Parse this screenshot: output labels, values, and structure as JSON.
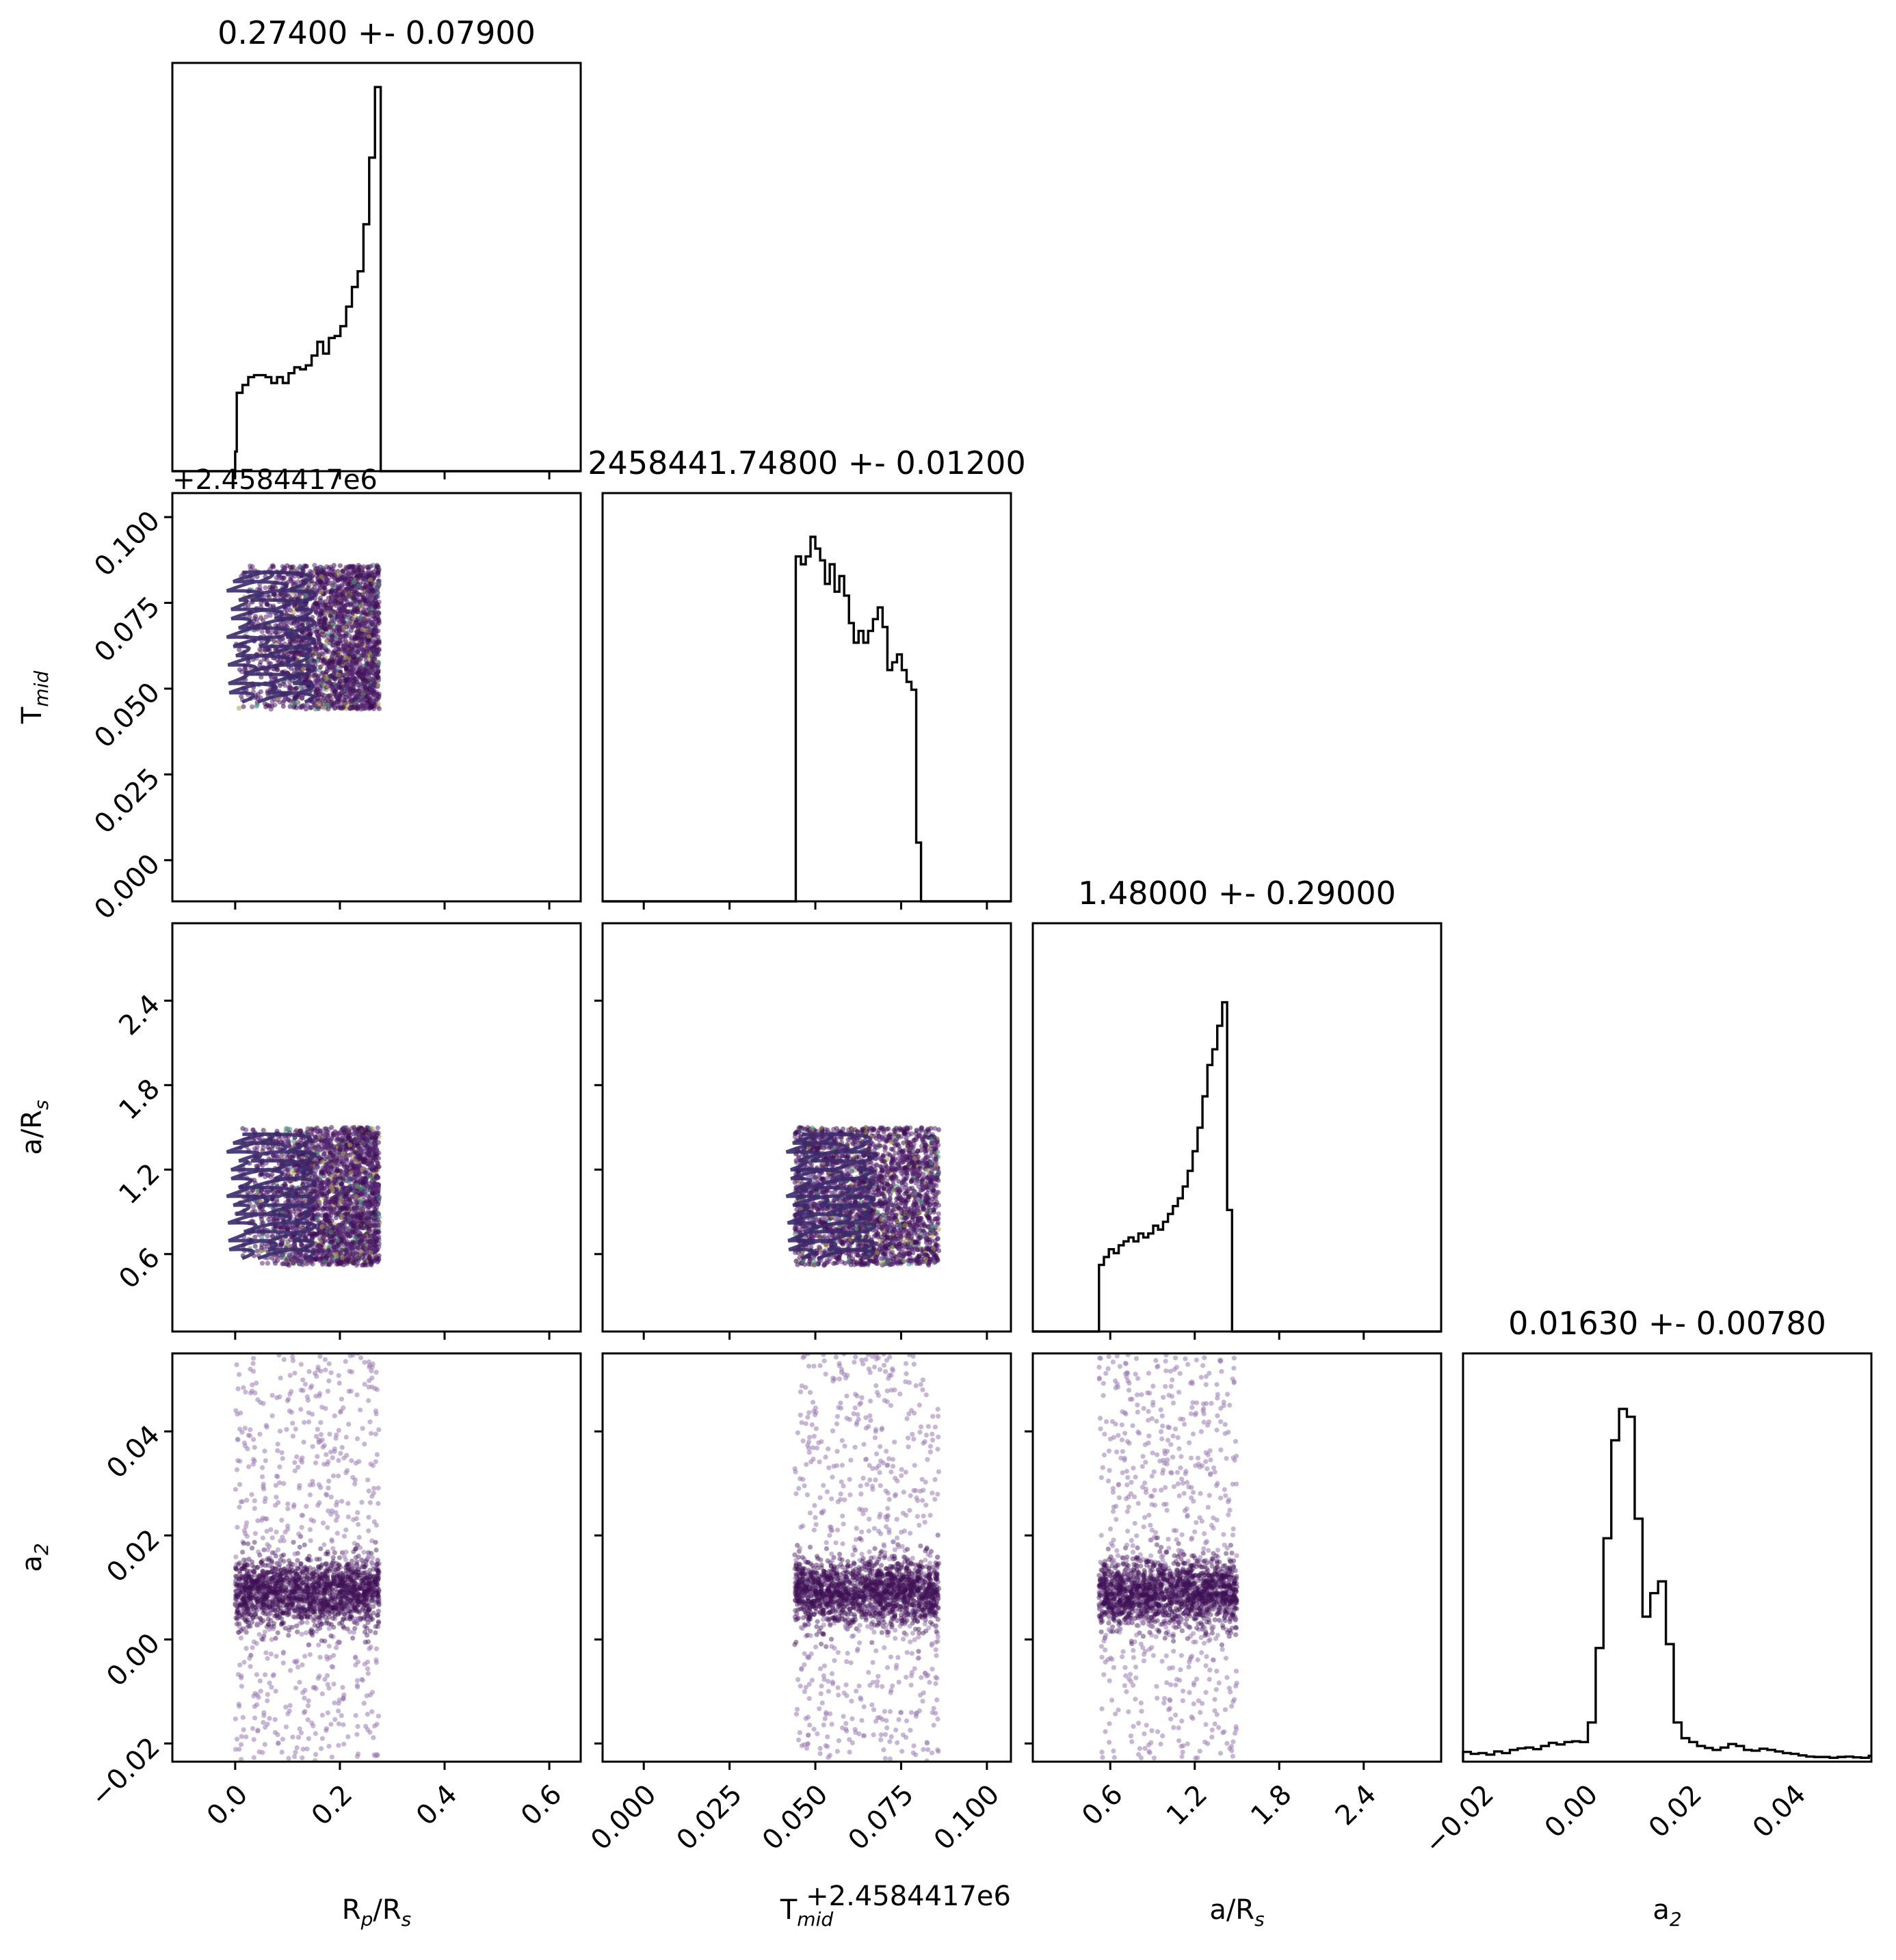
{
  "figure": {
    "type": "corner",
    "theme_colors": {
      "points_dark": "#3e0f55",
      "points_mid": "#5b2a7a",
      "points_light": "#9a7ab2",
      "contour": "#3b2a6b",
      "line": "#000000"
    }
  },
  "chart_data": {
    "type": "corner",
    "parameters": [
      {
        "id": "rp",
        "label": "R",
        "label_sub": "p",
        "label_tail": "/R",
        "label_tail_sub": "s",
        "title": "0.27400 +- 0.07900",
        "range": [
          -0.12,
          0.66
        ],
        "ticks": [
          0.0,
          0.2,
          0.4,
          0.6
        ],
        "tick_labels": [
          "0.0",
          "0.2",
          "0.4",
          "0.6"
        ],
        "sample_range": [
          0.0,
          0.275
        ],
        "offset_text": ""
      },
      {
        "id": "tmid",
        "label": "T",
        "label_sub": "mid",
        "label_tail": "",
        "label_tail_sub": "",
        "title": "2458441.74800 +- 0.01200",
        "range": [
          -0.012,
          0.107
        ],
        "ticks": [
          0.0,
          0.025,
          0.05,
          0.075,
          0.1
        ],
        "tick_labels": [
          "0.000",
          "0.025",
          "0.050",
          "0.075",
          "0.100"
        ],
        "sample_range": [
          0.044,
          0.086
        ],
        "offset_text": "+2.4584417e6"
      },
      {
        "id": "ars",
        "label": "a/R",
        "label_sub": "s",
        "label_tail": "",
        "label_tail_sub": "",
        "title": "1.48000 +- 0.29000",
        "range": [
          0.05,
          2.95
        ],
        "ticks": [
          0.6,
          1.2,
          1.8,
          2.4
        ],
        "tick_labels": [
          "0.6",
          "1.2",
          "1.8",
          "2.4"
        ],
        "sample_range": [
          0.52,
          1.5
        ],
        "offset_text": ""
      },
      {
        "id": "a2",
        "label": "a",
        "label_sub": "2",
        "label_tail": "",
        "label_tail_sub": "",
        "title": "0.01630 +- 0.00780",
        "range": [
          -0.0235,
          0.055
        ],
        "ticks": [
          -0.02,
          0.0,
          0.02,
          0.04
        ],
        "tick_labels": [
          "−0.02",
          "0.00",
          "0.02",
          "0.04"
        ],
        "sample_range": [
          -0.0235,
          0.055
        ],
        "offset_text": ""
      }
    ],
    "histograms": {
      "rp": [
        [
          -0.01,
          0.0
        ],
        [
          0.0,
          0.05
        ],
        [
          0.003,
          0.2
        ],
        [
          0.014,
          0.22
        ],
        [
          0.025,
          0.24
        ],
        [
          0.036,
          0.245
        ],
        [
          0.047,
          0.245
        ],
        [
          0.058,
          0.24
        ],
        [
          0.069,
          0.225
        ],
        [
          0.08,
          0.24
        ],
        [
          0.091,
          0.225
        ],
        [
          0.102,
          0.25
        ],
        [
          0.113,
          0.265
        ],
        [
          0.124,
          0.26
        ],
        [
          0.135,
          0.27
        ],
        [
          0.146,
          0.295
        ],
        [
          0.157,
          0.33
        ],
        [
          0.168,
          0.3
        ],
        [
          0.179,
          0.34
        ],
        [
          0.19,
          0.345
        ],
        [
          0.201,
          0.37
        ],
        [
          0.212,
          0.42
        ],
        [
          0.223,
          0.47
        ],
        [
          0.234,
          0.51
        ],
        [
          0.245,
          0.63
        ],
        [
          0.256,
          0.8
        ],
        [
          0.267,
          0.98
        ],
        [
          0.278,
          0.0
        ]
      ],
      "tmid": [
        [
          0.0436,
          0.0
        ],
        [
          0.0443,
          0.88
        ],
        [
          0.0458,
          0.86
        ],
        [
          0.0472,
          0.88
        ],
        [
          0.0486,
          0.93
        ],
        [
          0.05,
          0.9
        ],
        [
          0.0514,
          0.87
        ],
        [
          0.0528,
          0.81
        ],
        [
          0.0542,
          0.86
        ],
        [
          0.0556,
          0.79
        ],
        [
          0.057,
          0.83
        ],
        [
          0.0584,
          0.78
        ],
        [
          0.0598,
          0.71
        ],
        [
          0.0612,
          0.66
        ],
        [
          0.0626,
          0.69
        ],
        [
          0.064,
          0.66
        ],
        [
          0.0654,
          0.69
        ],
        [
          0.0668,
          0.72
        ],
        [
          0.0682,
          0.75
        ],
        [
          0.0696,
          0.7
        ],
        [
          0.071,
          0.59
        ],
        [
          0.0724,
          0.61
        ],
        [
          0.0738,
          0.63
        ],
        [
          0.0752,
          0.59
        ],
        [
          0.0766,
          0.56
        ],
        [
          0.078,
          0.54
        ],
        [
          0.0794,
          0.15
        ],
        [
          0.0808,
          0.0
        ]
      ],
      "ars": [
        [
          0.5,
          0.0
        ],
        [
          0.52,
          0.17
        ],
        [
          0.555,
          0.19
        ],
        [
          0.59,
          0.21
        ],
        [
          0.625,
          0.2
        ],
        [
          0.66,
          0.22
        ],
        [
          0.695,
          0.23
        ],
        [
          0.73,
          0.24
        ],
        [
          0.765,
          0.23
        ],
        [
          0.8,
          0.25
        ],
        [
          0.835,
          0.24
        ],
        [
          0.87,
          0.25
        ],
        [
          0.905,
          0.27
        ],
        [
          0.94,
          0.26
        ],
        [
          0.975,
          0.28
        ],
        [
          1.01,
          0.3
        ],
        [
          1.045,
          0.32
        ],
        [
          1.08,
          0.34
        ],
        [
          1.115,
          0.37
        ],
        [
          1.15,
          0.41
        ],
        [
          1.185,
          0.46
        ],
        [
          1.22,
          0.52
        ],
        [
          1.255,
          0.6
        ],
        [
          1.29,
          0.68
        ],
        [
          1.325,
          0.72
        ],
        [
          1.36,
          0.78
        ],
        [
          1.395,
          0.84
        ],
        [
          1.43,
          0.31
        ],
        [
          1.465,
          0.0
        ]
      ],
      "a2": [
        [
          -0.0235,
          0.025
        ],
        [
          -0.022,
          0.02
        ],
        [
          -0.0205,
          0.022
        ],
        [
          -0.019,
          0.018
        ],
        [
          -0.0175,
          0.026
        ],
        [
          -0.016,
          0.022
        ],
        [
          -0.0145,
          0.03
        ],
        [
          -0.013,
          0.034
        ],
        [
          -0.0115,
          0.036
        ],
        [
          -0.01,
          0.032
        ],
        [
          -0.0085,
          0.04
        ],
        [
          -0.007,
          0.048
        ],
        [
          -0.0055,
          0.044
        ],
        [
          -0.004,
          0.05
        ],
        [
          -0.0025,
          0.052
        ],
        [
          -0.001,
          0.05
        ],
        [
          0.0005,
          0.1
        ],
        [
          0.002,
          0.29
        ],
        [
          0.0035,
          0.57
        ],
        [
          0.005,
          0.82
        ],
        [
          0.0065,
          0.9
        ],
        [
          0.008,
          0.88
        ],
        [
          0.0095,
          0.62
        ],
        [
          0.011,
          0.37
        ],
        [
          0.0125,
          0.43
        ],
        [
          0.014,
          0.46
        ],
        [
          0.0155,
          0.3
        ],
        [
          0.017,
          0.1
        ],
        [
          0.0185,
          0.06
        ],
        [
          0.02,
          0.05
        ],
        [
          0.0215,
          0.04
        ],
        [
          0.023,
          0.035
        ],
        [
          0.0245,
          0.03
        ],
        [
          0.026,
          0.036
        ],
        [
          0.0275,
          0.045
        ],
        [
          0.029,
          0.04
        ],
        [
          0.0305,
          0.03
        ],
        [
          0.032,
          0.028
        ],
        [
          0.0335,
          0.033
        ],
        [
          0.035,
          0.03
        ],
        [
          0.0365,
          0.026
        ],
        [
          0.038,
          0.022
        ],
        [
          0.0395,
          0.02
        ],
        [
          0.041,
          0.016
        ],
        [
          0.0425,
          0.013
        ],
        [
          0.044,
          0.012
        ],
        [
          0.0455,
          0.012
        ],
        [
          0.047,
          0.01
        ],
        [
          0.0485,
          0.012
        ],
        [
          0.05,
          0.013
        ],
        [
          0.0515,
          0.011
        ],
        [
          0.053,
          0.01
        ],
        [
          0.0545,
          0.015
        ]
      ]
    },
    "scatter_panels": [
      {
        "x": "rp",
        "y": "tmid",
        "style": "dense"
      },
      {
        "x": "rp",
        "y": "ars",
        "style": "dense"
      },
      {
        "x": "tmid",
        "y": "ars",
        "style": "dense"
      },
      {
        "x": "rp",
        "y": "a2",
        "style": "band"
      },
      {
        "x": "tmid",
        "y": "a2",
        "style": "band"
      },
      {
        "x": "ars",
        "y": "a2",
        "style": "band"
      }
    ],
    "a2_band": {
      "center": 0.009,
      "width": 0.006
    }
  }
}
